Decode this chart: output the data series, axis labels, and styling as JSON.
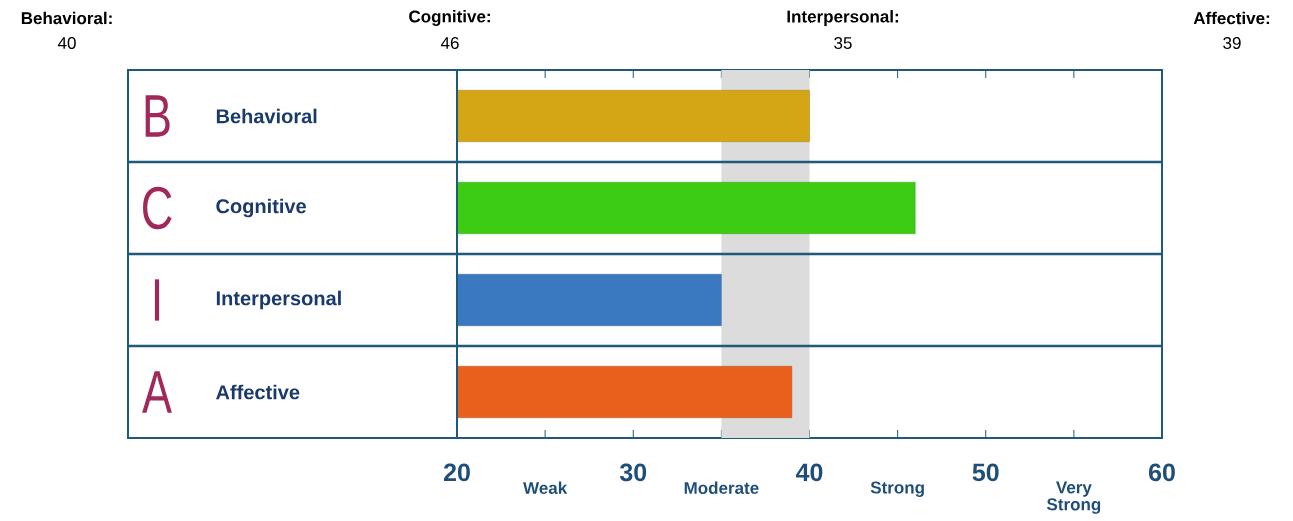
{
  "chart_data": {
    "type": "bar",
    "orientation": "horizontal",
    "categories": [
      "Behavioral",
      "Cognitive",
      "Interpersonal",
      "Affective"
    ],
    "values": [
      40,
      46,
      35,
      39
    ],
    "colors": [
      "#d4a514",
      "#3ccc14",
      "#3a78c0",
      "#e8601c"
    ],
    "annotations": [
      "B",
      "C",
      "I",
      "A",
      "Behavioral:",
      "Cognitive:",
      "Interpersonal:",
      "Affective:",
      "40",
      "46",
      "35",
      "39",
      "Weak",
      "Moderate",
      "Strong",
      "Very Strong"
    ],
    "xlim": [
      20,
      60
    ],
    "xticks": [
      20,
      {
        "value": 25,
        "label": null
      },
      30,
      {
        "value": 35,
        "label": null
      },
      40,
      {
        "value": 45,
        "label": null
      },
      50,
      {
        "value": 55,
        "label": null
      },
      60
    ],
    "bands": [
      {
        "axis": "x",
        "from": 35,
        "to": 40,
        "color": "#dcdcdc"
      }
    ]
  }
}
